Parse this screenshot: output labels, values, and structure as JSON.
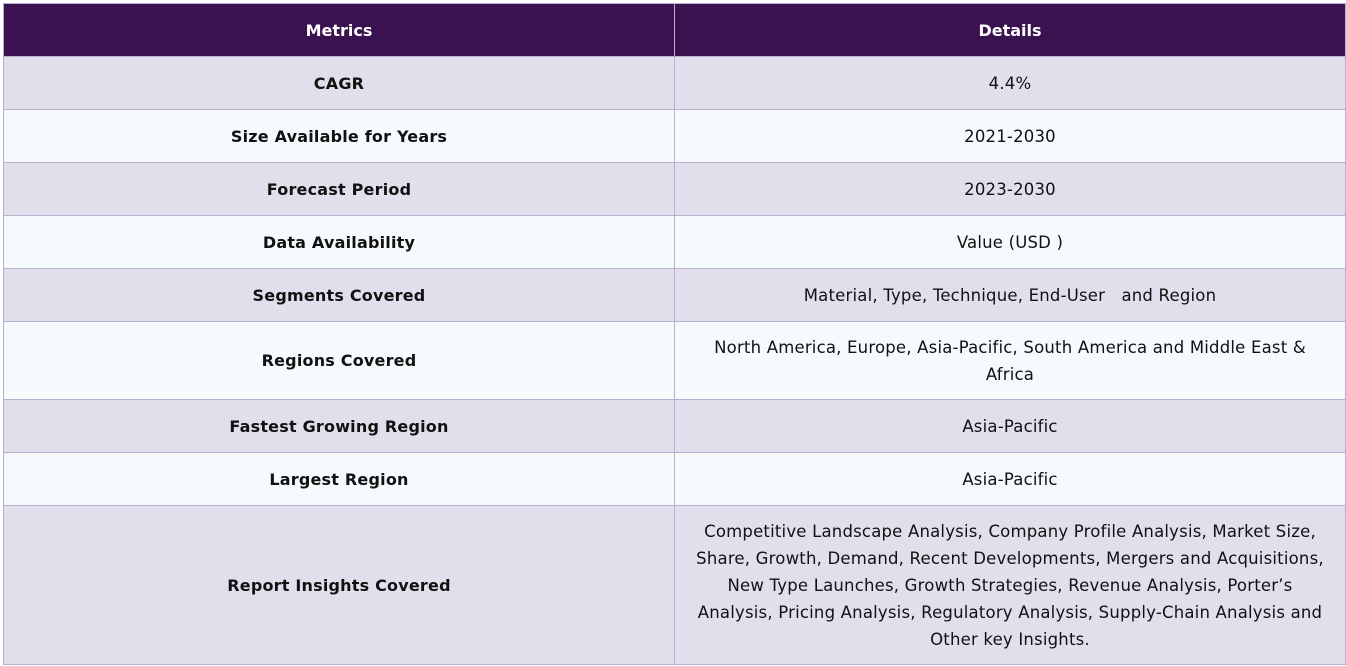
{
  "table": {
    "headers": {
      "metrics": "Metrics",
      "details": "Details"
    },
    "rows": [
      {
        "metric": "CAGR",
        "detail": "4.4%"
      },
      {
        "metric": "Size Available for Years",
        "detail": "2021-2030"
      },
      {
        "metric": "Forecast Period",
        "detail": "2023-2030"
      },
      {
        "metric": "Data Availability",
        "detail": "Value (USD )"
      },
      {
        "metric": "Segments Covered",
        "detail": "Material, Type, Technique, End-User   and Region"
      },
      {
        "metric": "Regions Covered",
        "detail": "North America, Europe, Asia-Pacific, South America and Middle East & Africa"
      },
      {
        "metric": "Fastest Growing Region",
        "detail": "Asia-Pacific"
      },
      {
        "metric": "Largest Region",
        "detail": "Asia-Pacific"
      },
      {
        "metric": "Report Insights Covered",
        "detail": "Competitive Landscape Analysis, Company Profile Analysis, Market Size, Share, Growth, Demand, Recent Developments, Mergers and Acquisitions, New Type Launches, Growth Strategies, Revenue Analysis, Porter’s Analysis, Pricing Analysis, Regulatory Analysis, Supply-Chain Analysis and Other key Insights."
      }
    ]
  },
  "colors": {
    "header_bg": "#3a124f",
    "header_text": "#ffffff",
    "row_odd_bg": "#e2dfec",
    "row_even_bg": "#f5fafd",
    "border": "#b7b0cf"
  }
}
